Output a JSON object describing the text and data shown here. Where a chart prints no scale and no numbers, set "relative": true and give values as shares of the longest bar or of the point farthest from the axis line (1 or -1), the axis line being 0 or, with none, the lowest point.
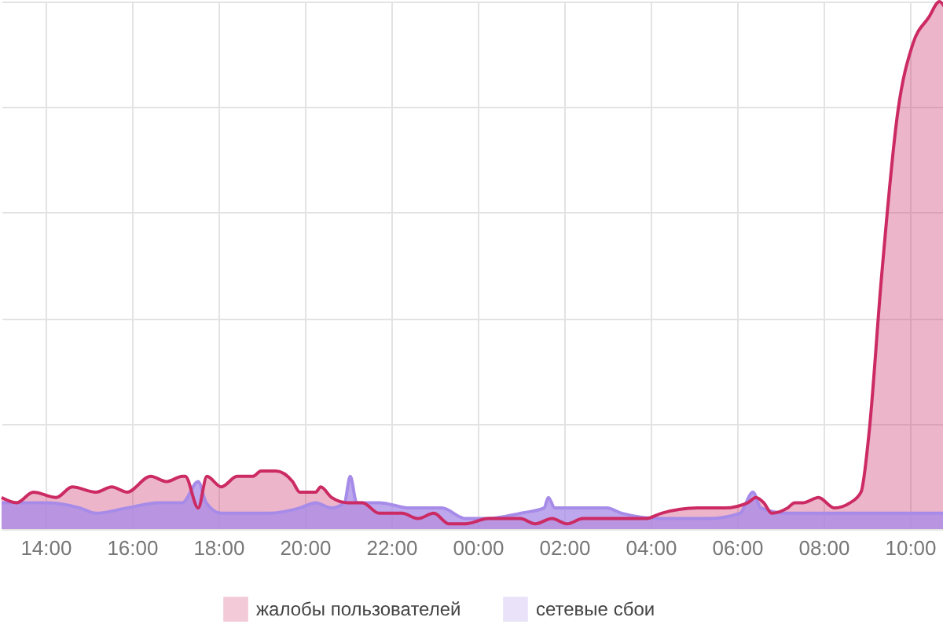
{
  "chart_data": {
    "type": "area",
    "relative": true,
    "grid": true,
    "legend": "bottom",
    "xlim": [
      "2000-01-01T12:59",
      "2000-01-02T10:48"
    ],
    "xticks": [
      {
        "value": "2000-01-01T14:00",
        "label": "14:00"
      },
      {
        "value": "2000-01-01T16:00",
        "label": "16:00"
      },
      {
        "value": "2000-01-01T18:00",
        "label": "18:00"
      },
      {
        "value": "2000-01-01T20:00",
        "label": "20:00"
      },
      {
        "value": "2000-01-01T22:00",
        "label": "22:00"
      },
      {
        "value": "2000-01-02T00:00",
        "label": "00:00"
      },
      {
        "value": "2000-01-02T02:00",
        "label": "02:00"
      },
      {
        "value": "2000-01-02T04:00",
        "label": "04:00"
      },
      {
        "value": "2000-01-02T06:00",
        "label": "06:00"
      },
      {
        "value": "2000-01-02T08:00",
        "label": "08:00"
      },
      {
        "value": "2000-01-02T10:00",
        "label": "10:00"
      }
    ],
    "series": [
      {
        "name": "жалобы пользователей",
        "color": "#cc2a63",
        "x": [
          "2000-01-01T12:59",
          "2000-01-01T13:20",
          "2000-01-01T13:43",
          "2000-01-01T14:15",
          "2000-01-01T14:37",
          "2000-01-01T15:10",
          "2000-01-01T15:32",
          "2000-01-01T15:53",
          "2000-01-01T16:26",
          "2000-01-01T16:48",
          "2000-01-01T17:10",
          "2000-01-01T17:14",
          "2000-01-01T17:32",
          "2000-01-01T17:44",
          "2000-01-01T18:04",
          "2000-01-01T18:26",
          "2000-01-01T18:48",
          "2000-01-01T18:59",
          "2000-01-01T19:20",
          "2000-01-01T19:43",
          "2000-01-01T19:53",
          "2000-01-01T20:15",
          "2000-01-01T20:22",
          "2000-01-01T20:37",
          "2000-01-01T20:59",
          "2000-01-01T21:20",
          "2000-01-01T21:43",
          "2000-01-01T22:15",
          "2000-01-01T22:37",
          "2000-01-01T22:59",
          "2000-01-01T23:20",
          "2000-01-01T23:43",
          "2000-01-02T00:15",
          "2000-01-02T00:37",
          "2000-01-02T00:59",
          "2000-01-02T01:20",
          "2000-01-02T01:43",
          "2000-01-02T02:04",
          "2000-01-02T02:26",
          "2000-01-02T03:10",
          "2000-01-02T03:53",
          "2000-01-02T04:15",
          "2000-01-02T05:05",
          "2000-01-02T05:43",
          "2000-01-02T06:15",
          "2000-01-02T06:26",
          "2000-01-02T06:37",
          "2000-01-02T06:48",
          "2000-01-02T07:10",
          "2000-01-02T07:20",
          "2000-01-02T07:32",
          "2000-01-02T07:53",
          "2000-01-02T08:15",
          "2000-01-02T08:37",
          "2000-01-02T08:52",
          "2000-01-02T09:03",
          "2000-01-02T09:20",
          "2000-01-02T09:43",
          "2000-01-02T10:04",
          "2000-01-02T10:26",
          "2000-01-02T10:41",
          "2000-01-02T10:48"
        ],
        "values": [
          0.06,
          0.05,
          0.07,
          0.06,
          0.08,
          0.07,
          0.08,
          0.07,
          0.1,
          0.09,
          0.1,
          0.1,
          0.04,
          0.1,
          0.08,
          0.1,
          0.1,
          0.11,
          0.11,
          0.09,
          0.07,
          0.07,
          0.08,
          0.06,
          0.05,
          0.05,
          0.03,
          0.03,
          0.02,
          0.03,
          0.01,
          0.01,
          0.02,
          0.02,
          0.02,
          0.01,
          0.02,
          0.01,
          0.02,
          0.02,
          0.02,
          0.03,
          0.04,
          0.04,
          0.05,
          0.06,
          0.05,
          0.03,
          0.04,
          0.05,
          0.05,
          0.06,
          0.04,
          0.05,
          0.07,
          0.18,
          0.47,
          0.79,
          0.92,
          0.97,
          1,
          0.99
        ]
      },
      {
        "name": "сетевые сбои",
        "color": "#a78be8",
        "x": [
          "2000-01-01T12:59",
          "2000-01-01T14:04",
          "2000-01-01T14:48",
          "2000-01-01T15:10",
          "2000-01-01T15:53",
          "2000-01-01T16:37",
          "2000-01-01T17:10",
          "2000-01-01T17:32",
          "2000-01-01T17:43",
          "2000-01-01T18:04",
          "2000-01-01T19:10",
          "2000-01-01T19:53",
          "2000-01-01T20:15",
          "2000-01-01T20:37",
          "2000-01-01T20:55",
          "2000-01-01T21:03",
          "2000-01-01T21:12",
          "2000-01-01T21:43",
          "2000-01-01T22:26",
          "2000-01-01T23:10",
          "2000-01-01T23:43",
          "2000-01-02T00:15",
          "2000-01-02T00:59",
          "2000-01-02T01:32",
          "2000-01-02T01:38",
          "2000-01-02T01:47",
          "2000-01-02T02:26",
          "2000-01-02T02:59",
          "2000-01-02T03:20",
          "2000-01-02T04:15",
          "2000-01-02T05:20",
          "2000-01-02T06:04",
          "2000-01-02T06:22",
          "2000-01-02T06:33",
          "2000-01-02T07:10",
          "2000-01-02T08:15",
          "2000-01-02T09:20",
          "2000-01-02T10:04",
          "2000-01-02T10:48"
        ],
        "values": [
          0.05,
          0.05,
          0.04,
          0.03,
          0.04,
          0.05,
          0.05,
          0.09,
          0.05,
          0.03,
          0.03,
          0.04,
          0.05,
          0.04,
          0.05,
          0.1,
          0.05,
          0.05,
          0.04,
          0.04,
          0.02,
          0.02,
          0.03,
          0.04,
          0.06,
          0.04,
          0.04,
          0.04,
          0.03,
          0.02,
          0.02,
          0.03,
          0.07,
          0.04,
          0.03,
          0.03,
          0.03,
          0.03,
          0.03
        ]
      }
    ]
  }
}
